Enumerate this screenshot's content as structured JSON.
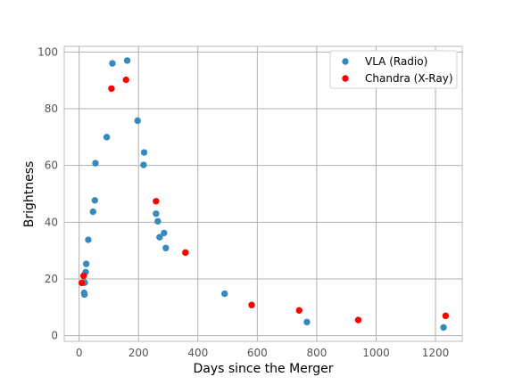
{
  "chart_data": {
    "type": "scatter",
    "title": "",
    "xlabel": "Days since the Merger",
    "ylabel": "Brightness",
    "xlim": [
      -50,
      1290
    ],
    "ylim": [
      -2,
      102
    ],
    "xticks": [
      0,
      200,
      400,
      600,
      800,
      1000,
      1200
    ],
    "yticks": [
      0,
      20,
      40,
      60,
      80,
      100
    ],
    "grid": true,
    "legend_position": "top-right",
    "series": [
      {
        "name": "VLA (Radio)",
        "color": "#348abd",
        "points": [
          [
            16,
            18.7
          ],
          [
            17,
            15.1
          ],
          [
            18,
            14.5
          ],
          [
            19,
            18.7
          ],
          [
            22,
            22.4
          ],
          [
            24,
            25.3
          ],
          [
            31,
            33.8
          ],
          [
            47,
            43.7
          ],
          [
            53,
            47.7
          ],
          [
            55,
            60.8
          ],
          [
            93,
            70.0
          ],
          [
            112,
            96.0
          ],
          [
            162,
            97.0
          ],
          [
            197,
            75.8
          ],
          [
            217,
            60.2
          ],
          [
            219,
            64.6
          ],
          [
            259,
            43.0
          ],
          [
            265,
            40.3
          ],
          [
            271,
            34.7
          ],
          [
            286,
            36.2
          ],
          [
            292,
            30.9
          ],
          [
            490,
            14.8
          ],
          [
            767,
            4.8
          ],
          [
            1227,
            2.9
          ]
        ]
      },
      {
        "name": "Chandra (X-Ray)",
        "color": "#ff0000",
        "points": [
          [
            9,
            18.6
          ],
          [
            15,
            21.1
          ],
          [
            109,
            87.1
          ],
          [
            158,
            90.2
          ],
          [
            259,
            47.4
          ],
          [
            358,
            29.3
          ],
          [
            581,
            10.8
          ],
          [
            741,
            8.9
          ],
          [
            940,
            5.5
          ],
          [
            1234,
            7.0
          ]
        ]
      }
    ]
  }
}
